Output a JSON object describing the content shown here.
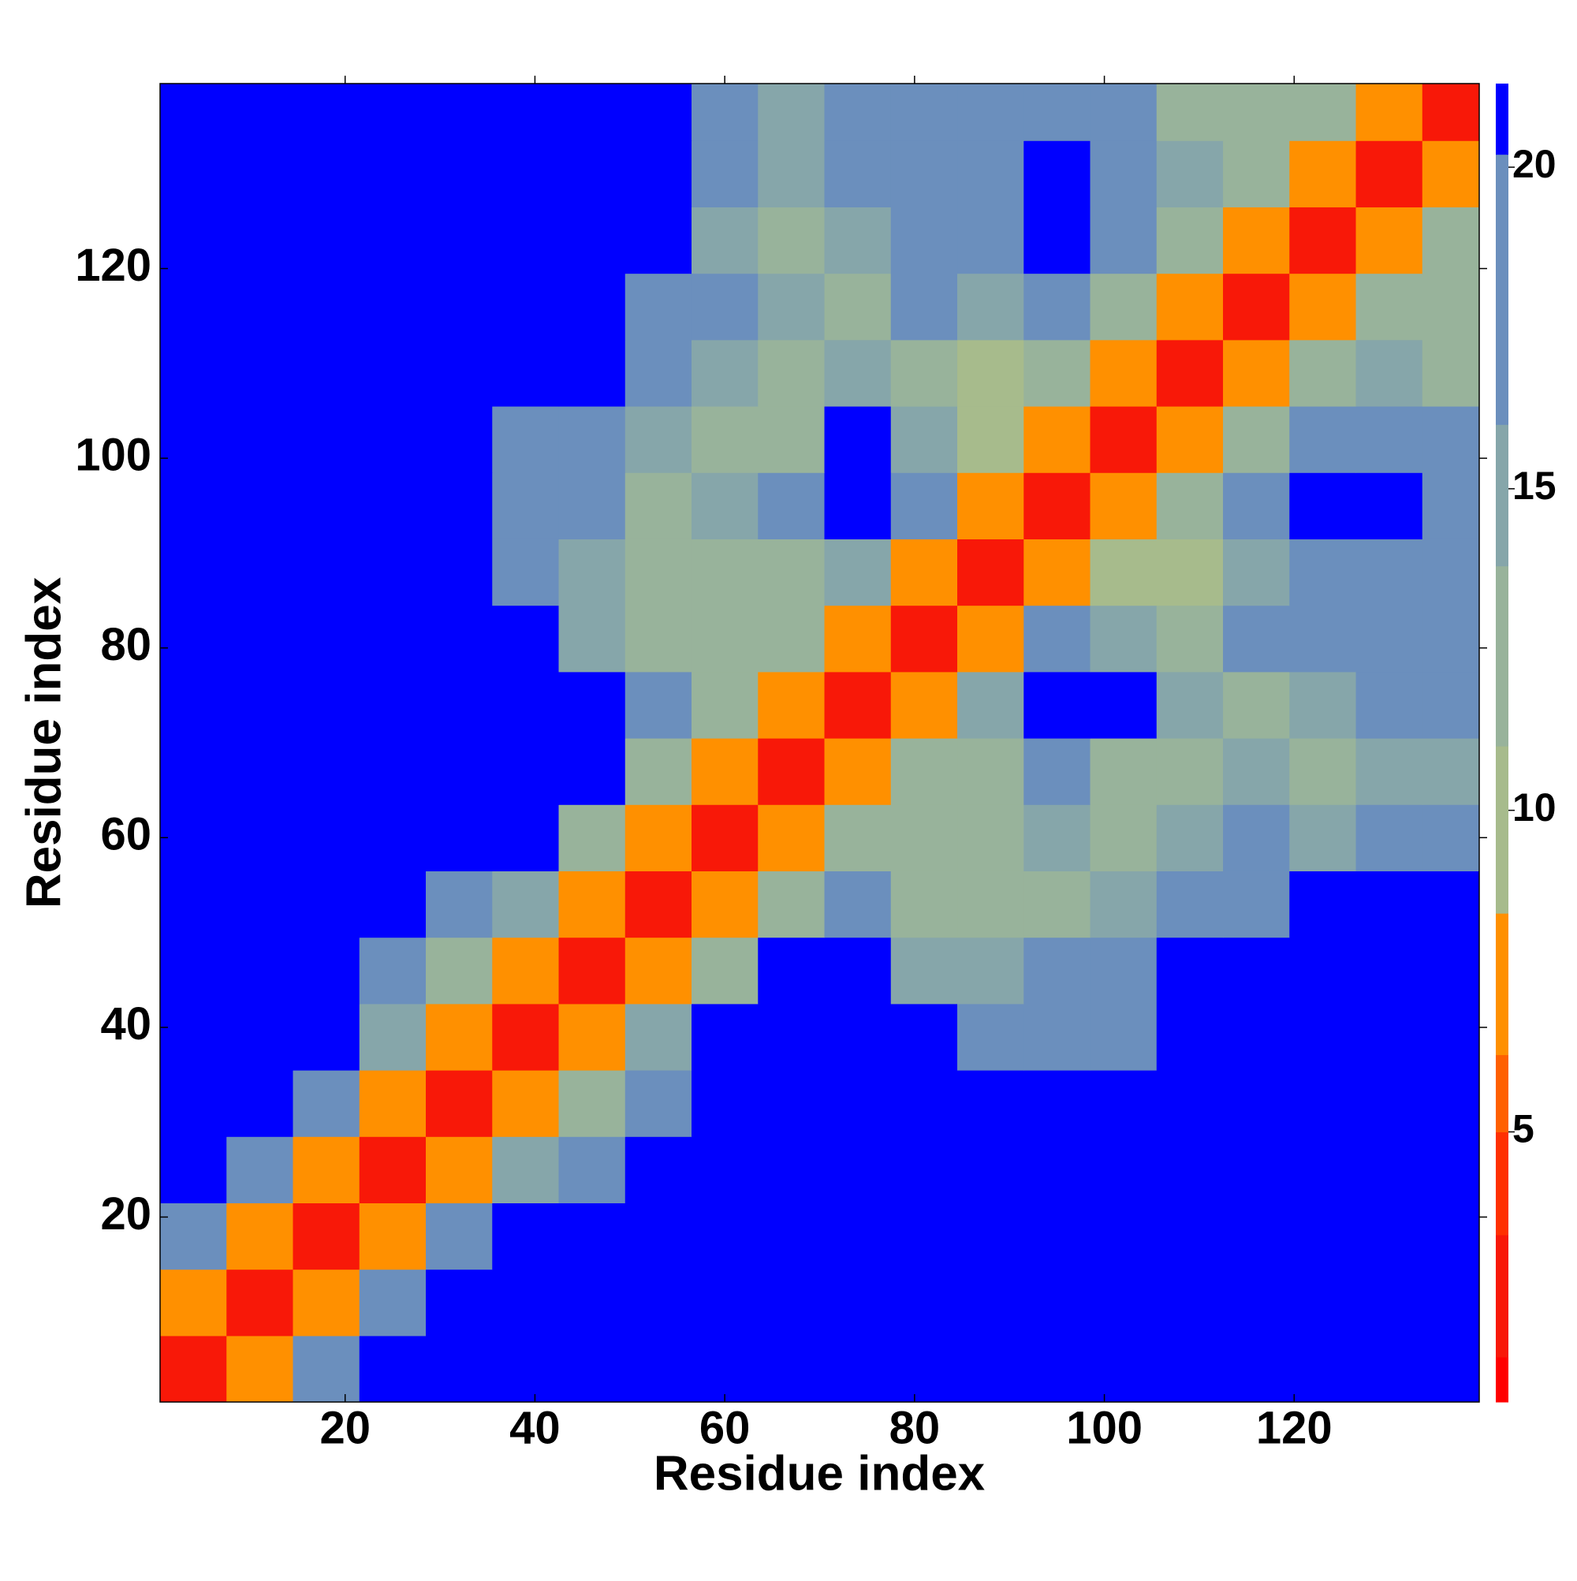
{
  "chart_data": {
    "type": "heatmap",
    "xlabel": "Residue index",
    "ylabel": "Residue index",
    "x": [
      4,
      11,
      18,
      25,
      32,
      39,
      46,
      53,
      60,
      67,
      74,
      81,
      88,
      95,
      102,
      109,
      116,
      123,
      130,
      137
    ],
    "y": [
      4,
      11,
      18,
      25,
      32,
      39,
      46,
      53,
      60,
      67,
      74,
      81,
      88,
      95,
      102,
      109,
      116,
      123,
      130,
      137
    ],
    "z": [
      [
        3,
        8,
        16,
        21,
        21,
        21,
        21,
        21,
        21,
        21,
        21,
        21,
        21,
        21,
        21,
        21,
        21,
        21,
        21,
        21
      ],
      [
        8,
        3,
        8,
        16,
        21,
        21,
        21,
        21,
        21,
        21,
        21,
        21,
        21,
        21,
        21,
        21,
        21,
        21,
        21,
        21
      ],
      [
        16,
        8,
        3,
        8,
        16,
        21,
        21,
        21,
        21,
        21,
        21,
        21,
        21,
        21,
        21,
        21,
        21,
        21,
        21,
        21
      ],
      [
        21,
        16,
        8,
        3,
        8,
        15,
        18,
        21,
        21,
        21,
        21,
        21,
        21,
        21,
        21,
        21,
        21,
        21,
        21,
        21
      ],
      [
        21,
        21,
        16,
        8,
        3,
        7,
        13,
        19,
        21,
        21,
        21,
        21,
        21,
        21,
        21,
        21,
        21,
        21,
        21,
        21
      ],
      [
        21,
        21,
        21,
        15,
        7,
        3,
        7,
        14,
        21,
        21,
        21,
        21,
        17,
        18,
        20,
        21,
        21,
        21,
        21,
        21
      ],
      [
        21,
        21,
        21,
        18,
        13,
        7,
        3,
        7,
        13,
        21,
        21,
        14,
        14,
        16,
        20,
        21,
        21,
        21,
        21,
        21
      ],
      [
        21,
        21,
        21,
        21,
        19,
        14,
        7,
        3,
        7,
        13,
        17,
        13,
        11,
        13,
        15,
        18,
        20,
        21,
        21,
        21
      ],
      [
        21,
        21,
        21,
        21,
        21,
        21,
        13,
        7,
        3,
        7,
        12,
        13,
        13,
        14,
        11,
        14,
        17,
        15,
        16,
        20
      ],
      [
        21,
        21,
        21,
        21,
        21,
        21,
        21,
        13,
        7,
        3,
        7,
        11,
        13,
        18,
        12,
        13,
        14,
        12,
        15,
        15
      ],
      [
        21,
        21,
        21,
        21,
        21,
        21,
        21,
        17,
        12,
        7,
        3,
        7,
        14,
        21,
        21,
        14,
        13,
        14,
        16,
        19
      ],
      [
        21,
        21,
        21,
        21,
        21,
        21,
        14,
        13,
        13,
        11,
        7,
        3,
        7,
        16,
        15,
        13,
        16,
        17,
        18,
        20
      ],
      [
        21,
        21,
        21,
        21,
        21,
        17,
        14,
        11,
        13,
        13,
        14,
        7,
        3,
        7,
        10,
        10,
        14,
        20,
        20,
        18
      ],
      [
        21,
        21,
        21,
        21,
        21,
        18,
        16,
        13,
        14,
        18,
        21,
        16,
        7,
        3,
        7,
        11,
        17,
        21,
        21,
        19
      ],
      [
        21,
        21,
        21,
        21,
        21,
        20,
        20,
        15,
        11,
        12,
        21,
        15,
        10,
        7,
        3,
        7,
        11,
        16,
        18,
        16
      ],
      [
        21,
        21,
        21,
        21,
        21,
        21,
        21,
        18,
        14,
        13,
        14,
        13,
        10,
        11,
        7,
        3,
        7,
        12,
        14,
        12
      ],
      [
        21,
        21,
        21,
        21,
        21,
        21,
        21,
        20,
        17,
        14,
        13,
        16,
        14,
        17,
        11,
        7,
        3,
        7,
        11,
        12
      ],
      [
        21,
        21,
        21,
        21,
        21,
        21,
        21,
        21,
        15,
        12,
        14,
        17,
        20,
        21,
        16,
        12,
        7,
        3,
        7,
        12
      ],
      [
        21,
        21,
        21,
        21,
        21,
        21,
        21,
        21,
        16,
        15,
        16,
        18,
        20,
        21,
        18,
        14,
        11,
        7,
        3,
        7
      ],
      [
        21,
        21,
        21,
        21,
        21,
        21,
        21,
        21,
        20,
        15,
        19,
        20,
        18,
        19,
        16,
        12,
        12,
        12,
        7,
        3
      ]
    ],
    "xlim": [
      0.5,
      139.5
    ],
    "ylim": [
      0.5,
      139.5
    ],
    "xticks": [
      20,
      40,
      60,
      80,
      100,
      120
    ],
    "yticks": [
      20,
      40,
      60,
      80,
      100,
      120
    ],
    "clim": [
      0.8,
      21.3
    ],
    "cticks": [
      5,
      10,
      15,
      20
    ],
    "colorscale": [
      [
        0.8,
        "#ff0000"
      ],
      [
        1.5,
        "#f81808"
      ],
      [
        3.4,
        "#ff3000"
      ],
      [
        5,
        "#ff6000"
      ],
      [
        6.2,
        "#ff9000"
      ],
      [
        8.4,
        "#a7bb8c"
      ],
      [
        11,
        "#98b39b"
      ],
      [
        13.8,
        "#86a6aa"
      ],
      [
        16,
        "#6b8fbd"
      ],
      [
        20.2,
        "#0000ff"
      ]
    ]
  }
}
